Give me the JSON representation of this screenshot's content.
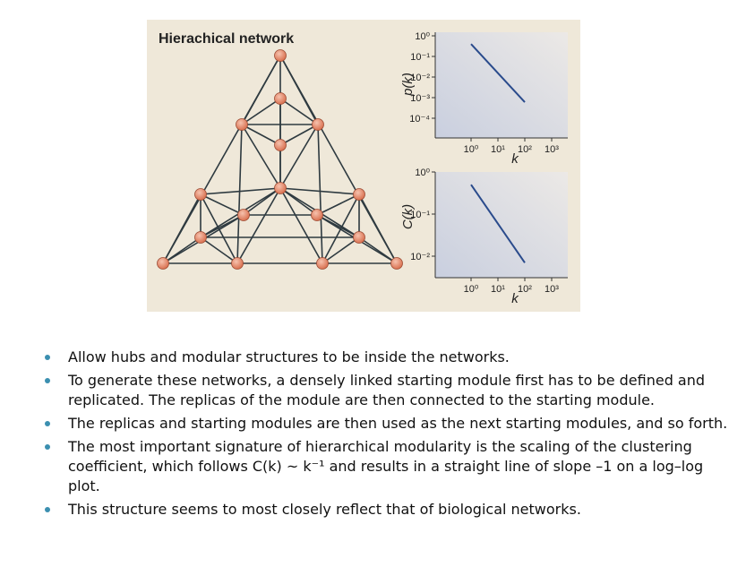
{
  "figure": {
    "title": "Hierachical network",
    "plot_top": {
      "ylabel": "p(k)",
      "xlabel": "k",
      "yticks": [
        "10⁰",
        "10⁻¹",
        "10⁻²",
        "10⁻³",
        "10⁻⁴"
      ],
      "xticks": [
        "10⁰",
        "10¹",
        "10²",
        "10³"
      ]
    },
    "plot_bottom": {
      "ylabel": "C(k)",
      "xlabel": "k",
      "yticks": [
        "10⁰",
        "10⁻¹",
        "10⁻²"
      ],
      "xticks": [
        "10⁰",
        "10¹",
        "10²",
        "10³"
      ]
    }
  },
  "chart_data": [
    {
      "type": "line",
      "ylabel": "p(k)",
      "xlabel": "k",
      "xscale": "log",
      "yscale": "log",
      "series": [
        {
          "x": [
            1,
            100
          ],
          "y": [
            0.4,
            0.0006
          ]
        }
      ]
    },
    {
      "type": "line",
      "ylabel": "C(k)",
      "xlabel": "k",
      "xscale": "log",
      "yscale": "log",
      "series": [
        {
          "x": [
            1,
            100
          ],
          "y": [
            0.5,
            0.007
          ]
        }
      ]
    }
  ],
  "bullets": [
    "Allow hubs and modular structures to be inside the networks.",
    "To generate these networks, a densely linked starting module first has to be defined and replicated.  The replicas of the module are then connected to the starting module.",
    "The replicas and starting modules are then used as the next starting modules, and so forth.",
    "The most important signature of hierarchical modularity is the scaling of the clustering coefficient, which follows C(k) ~ k⁻¹ and results in a straight line of slope –1  on a log–log plot.",
    "This structure seems to most closely reflect that of biological networks."
  ],
  "colors": {
    "node": "#e89478",
    "edge": "#2e3a40",
    "plot_line": "#2a4b8c",
    "bullet": "#3b8fb0"
  }
}
